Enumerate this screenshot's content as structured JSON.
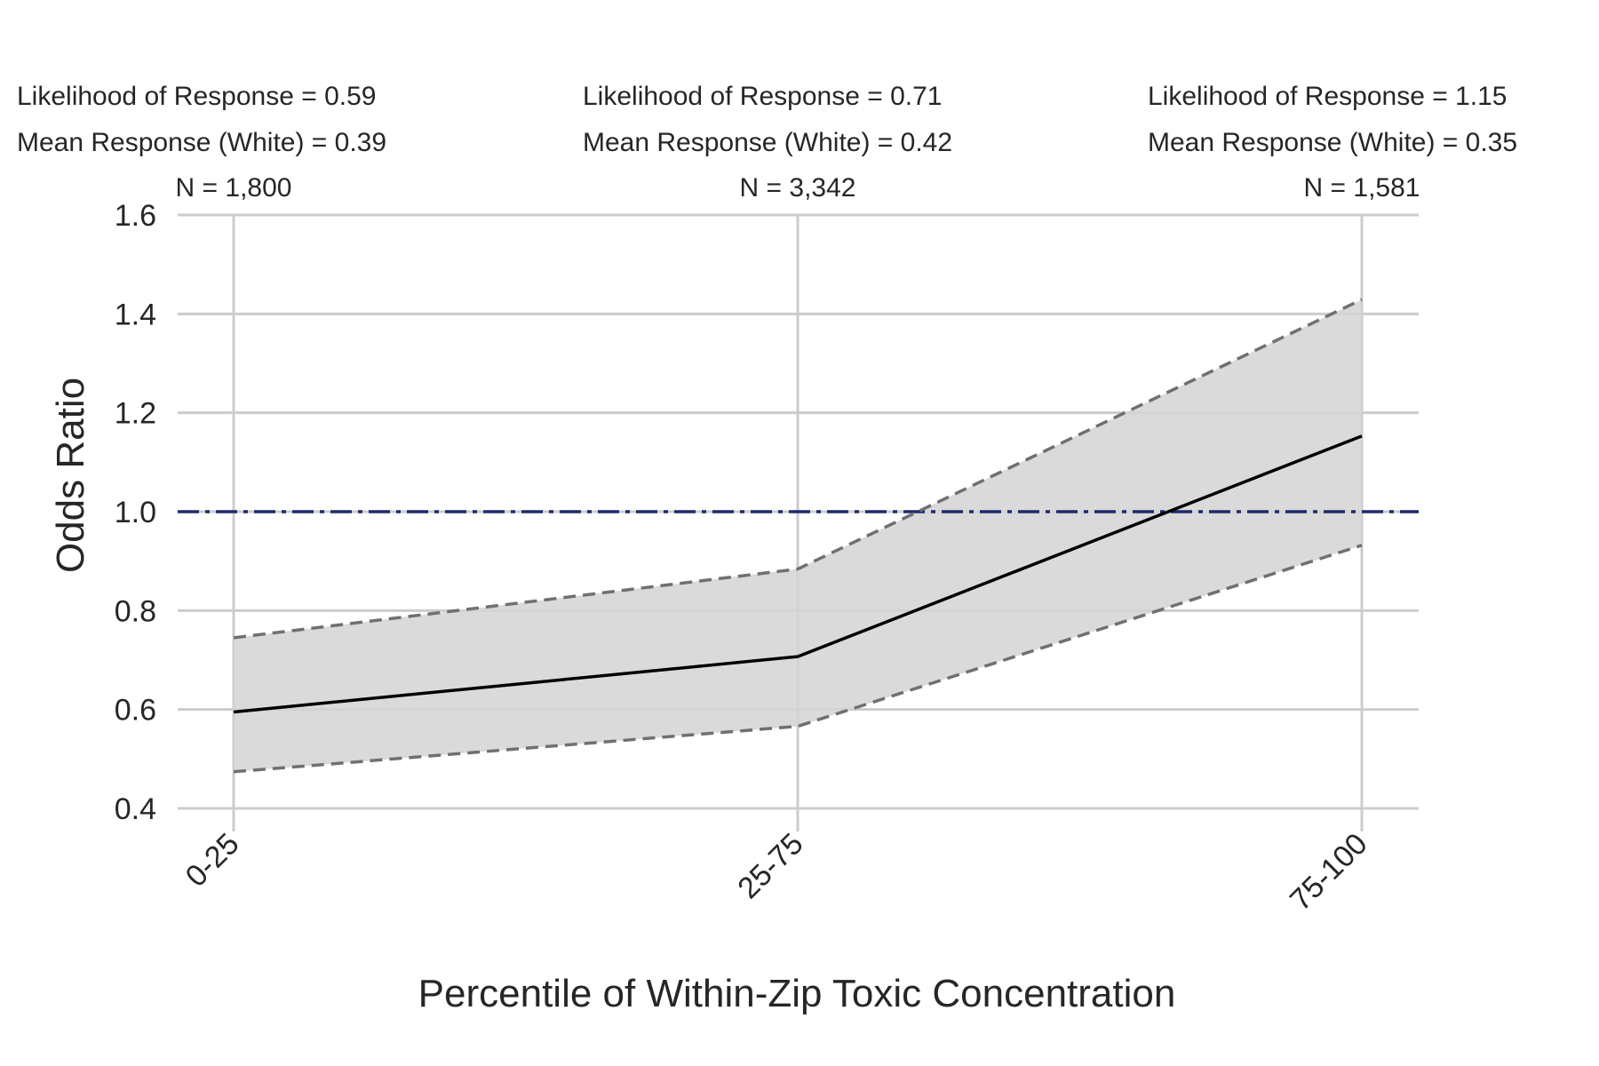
{
  "chart_data": {
    "type": "line",
    "title": "",
    "xlabel": "Percentile of Within-Zip Toxic Concentration",
    "ylabel": "Odds Ratio",
    "categories": [
      "0-25",
      "25-75",
      "75-100"
    ],
    "series": [
      {
        "values": [
          0.595,
          0.707,
          1.153
        ]
      }
    ],
    "ci_lower": [
      0.474,
      0.566,
      0.932
    ],
    "ci_upper": [
      0.745,
      0.884,
      1.429
    ],
    "reference_line": 1.0,
    "ylim": [
      0.4,
      1.6
    ],
    "yticks": [
      "0.4",
      "0.6",
      "0.8",
      "1.0",
      "1.2",
      "1.4",
      "1.6"
    ],
    "grid": true,
    "annotations": [
      {
        "likelihood": "Likelihood of Response = 0.59",
        "mean": "Mean Response (White) = 0.39",
        "n": "N = 1,800"
      },
      {
        "likelihood": "Likelihood of Response = 0.71",
        "mean": "Mean Response (White) = 0.42",
        "n": "N = 3,342"
      },
      {
        "likelihood": "Likelihood of Response = 1.15",
        "mean": "Mean Response (White) = 0.35",
        "n": "N = 1,581"
      }
    ]
  },
  "colors": {
    "grid": "#cccccc",
    "band": "#d3d3d3",
    "ci_line": "#707070",
    "main_line": "#000000",
    "reference": "#1f2a6b",
    "text": "#262626"
  }
}
